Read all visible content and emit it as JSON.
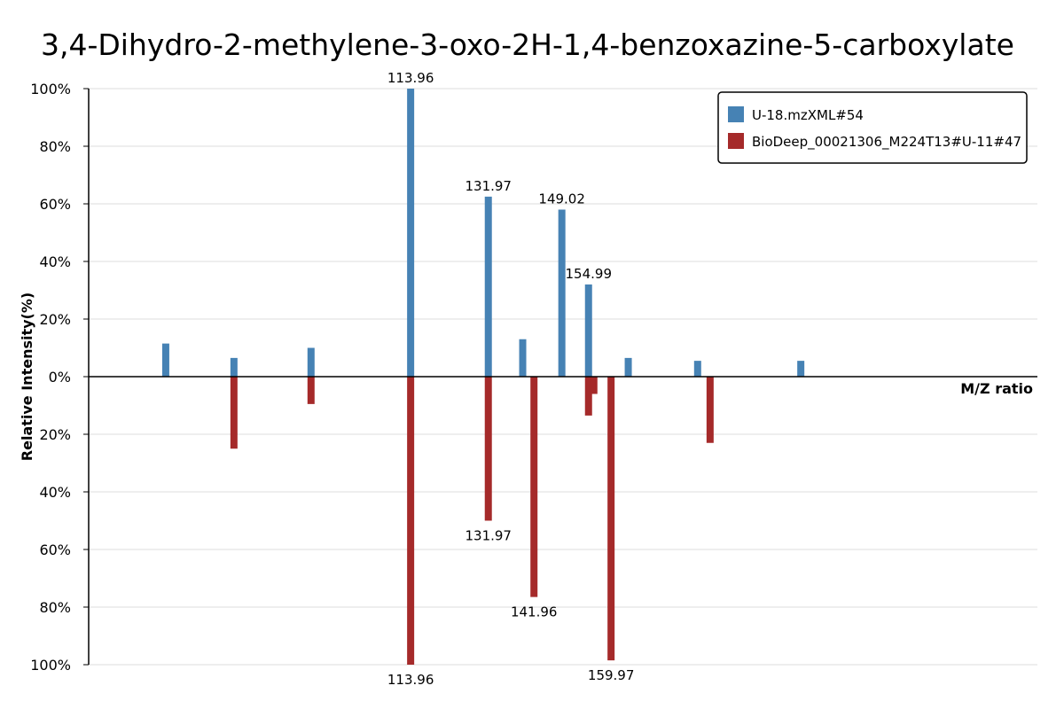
{
  "chart_data": {
    "type": "bar",
    "title": "3,4-Dihydro-2-methylene-3-oxo-2H-1,4-benzoxazine-5-carboxylate",
    "xlabel": "M/Z ratio",
    "ylabel": "Relative Intensity(%)",
    "ylim_top": [
      0,
      100
    ],
    "ylim_bottom": [
      0,
      100
    ],
    "xlim": [
      60,
      220
    ],
    "yticks": [
      "100%",
      "80%",
      "60%",
      "40%",
      "20%",
      "0%",
      "20%",
      "40%",
      "60%",
      "80%",
      "100%"
    ],
    "grid": true,
    "legend_position": "top-right",
    "series": [
      {
        "name": "U-18.mzXML#54",
        "color": "#4682b4",
        "direction": "up",
        "x": [
          73.0,
          84.5,
          97.5,
          114.3,
          127.4,
          133.2,
          139.8,
          144.3,
          151.0,
          162.7,
          180.1
        ],
        "values": [
          11.5,
          6.5,
          10.0,
          100.0,
          62.5,
          13.0,
          58.0,
          32.0,
          6.5,
          5.5,
          5.5
        ],
        "labels": [
          "",
          "",
          "",
          "113.96",
          "131.97",
          "",
          "149.02",
          "154.99",
          "",
          "",
          ""
        ]
      },
      {
        "name": "BioDeep_00021306_M224T13#U-11#47",
        "color": "#a52a2a",
        "direction": "down",
        "x": [
          84.5,
          97.5,
          114.3,
          127.4,
          135.1,
          144.3,
          145.2,
          148.1,
          164.8
        ],
        "values": [
          25.0,
          9.5,
          100.0,
          50.0,
          76.5,
          13.5,
          6.0,
          98.5,
          23.0
        ],
        "labels": [
          "",
          "",
          "113.96",
          "131.97",
          "141.96",
          "",
          "",
          "159.97",
          ""
        ]
      }
    ]
  }
}
